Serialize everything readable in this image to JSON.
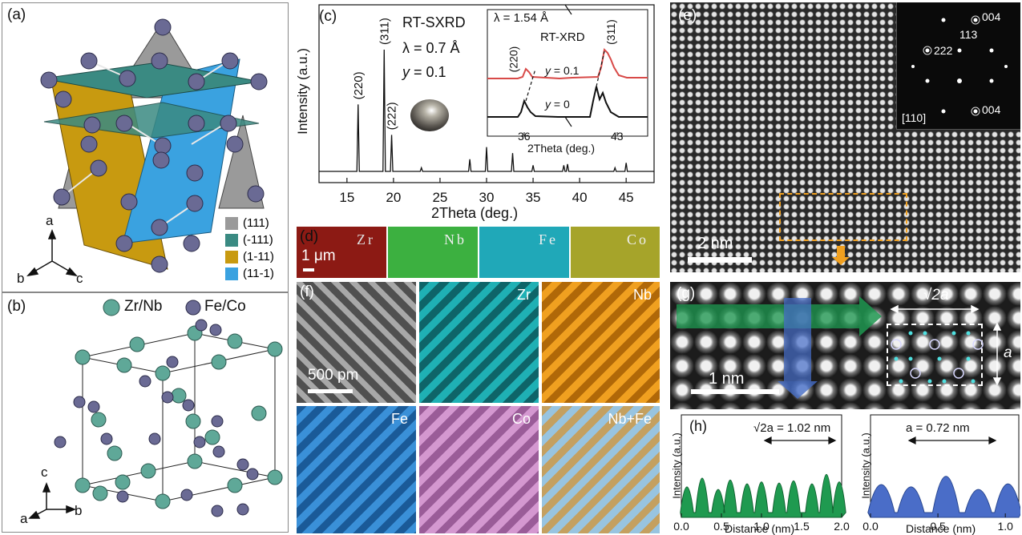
{
  "panel_a": {
    "label": "(a)",
    "legend": [
      {
        "text": "(111)",
        "color": "#9a9a9a"
      },
      {
        "text": "(-111)",
        "color": "#3a8a82"
      },
      {
        "text": "(1-11)",
        "color": "#c89a10"
      },
      {
        "text": "(11-1)",
        "color": "#3aa2e0"
      }
    ],
    "axes": {
      "a": "a",
      "b": "b",
      "c": "c"
    }
  },
  "panel_b": {
    "label": "(b)",
    "legend_zr": "Zr/Nb",
    "legend_fe": "Fe/Co",
    "axes": {
      "c": "c",
      "a": "a",
      "b": "b"
    },
    "colors": {
      "zr": "#5fa898",
      "fe": "#6a6a94"
    }
  },
  "panel_c": {
    "label": "(c)",
    "title": "RT-SXRD",
    "lambda": "λ = 0.7 Å",
    "y_label": "y = 0.1",
    "inset": {
      "lambda": "λ = 1.54 Å",
      "title": "RT-XRD",
      "peak1": "(220)",
      "peak2": "(311)",
      "curve1": "y = 0.1",
      "curve2": "y = 0",
      "xtick1": "36",
      "xtick2": "43",
      "xlabel": "2Theta (deg.)"
    }
  },
  "chart_data": [
    {
      "type": "line",
      "panel": "(c)",
      "xlabel": "2Theta (deg.)",
      "ylabel": "Intensity (a.u.)",
      "xlim": [
        12,
        48
      ],
      "xticks": [
        15,
        20,
        25,
        30,
        35,
        40,
        45
      ],
      "peaks": [
        {
          "x": 16.2,
          "h": 0.55,
          "label": "(220)"
        },
        {
          "x": 19.0,
          "h": 1.0,
          "label": "(311)"
        },
        {
          "x": 19.8,
          "h": 0.3,
          "label": "(222)"
        },
        {
          "x": 23.0,
          "h": 0.03,
          "label": ""
        },
        {
          "x": 28.2,
          "h": 0.1,
          "label": ""
        },
        {
          "x": 30.0,
          "h": 0.2,
          "label": ""
        },
        {
          "x": 32.8,
          "h": 0.15,
          "label": ""
        },
        {
          "x": 35.0,
          "h": 0.05,
          "label": ""
        },
        {
          "x": 38.3,
          "h": 0.05,
          "label": ""
        },
        {
          "x": 38.7,
          "h": 0.06,
          "label": ""
        },
        {
          "x": 43.8,
          "h": 0.03,
          "label": ""
        },
        {
          "x": 45.0,
          "h": 0.07,
          "label": ""
        }
      ]
    },
    {
      "type": "area",
      "panel": "(h) left",
      "xlabel": "Distance (nm)",
      "ylabel": "Intensity (a.u.)",
      "xlim": [
        0,
        2.0
      ],
      "xticks": [
        "0.0",
        "0.5",
        "1.0",
        "1.5",
        "2.0"
      ],
      "annotation": "√2a = 1.02 nm",
      "color": "#1f9a50",
      "peaks_x": [
        0.07,
        0.26,
        0.46,
        0.61,
        0.82,
        1.0,
        1.22,
        1.4,
        1.63,
        1.81,
        1.97
      ],
      "peaks_h": [
        0.62,
        0.85,
        0.55,
        0.8,
        0.7,
        0.75,
        0.72,
        0.78,
        0.7,
        0.95,
        0.75
      ]
    },
    {
      "type": "area",
      "panel": "(h) right",
      "xlabel": "Distance (nm)",
      "ylabel": "Intensity (a.u.)",
      "xlim": [
        0,
        1.1
      ],
      "xticks": [
        "0.0",
        "0.5",
        "1.0"
      ],
      "annotation": "a = 0.72 nm",
      "color": "#4a6dc8",
      "peaks_x": [
        0.08,
        0.3,
        0.56,
        0.8,
        1.02
      ],
      "peaks_h": [
        0.68,
        0.62,
        0.9,
        0.55,
        0.7
      ]
    }
  ],
  "panel_d": {
    "label": "(d)",
    "scale": "1 μm",
    "maps": [
      {
        "text": "Zr",
        "color": "#8c1a14"
      },
      {
        "text": "Nb",
        "color": "#3cb040"
      },
      {
        "text": "Fe",
        "color": "#20a8b8"
      },
      {
        "text": "Co",
        "color": "#a6a42a"
      }
    ]
  },
  "panel_e": {
    "label": "(e)",
    "scale": "2 nm",
    "fft": {
      "s1": "004",
      "s2": "113",
      "s3": "222",
      "s4": "004",
      "zone": "[110]"
    }
  },
  "panel_f": {
    "label": "(f)",
    "scale": "500 pm",
    "maps": [
      {
        "text": "",
        "color": "#808080"
      },
      {
        "text": "Zr",
        "color": "#1fb0b4"
      },
      {
        "text": "Nb",
        "color": "#e08c10"
      },
      {
        "text": "Fe",
        "color": "#2a7ec8"
      },
      {
        "text": "Co",
        "color": "#c686c0"
      },
      {
        "text": "Nb+Fe",
        "color": "#a8b8b0"
      }
    ]
  },
  "panel_g": {
    "label": "(g)",
    "scale": "1 nm",
    "dim_x": "√2a",
    "dim_y": "a"
  },
  "panel_h": {
    "label": "(h)"
  }
}
